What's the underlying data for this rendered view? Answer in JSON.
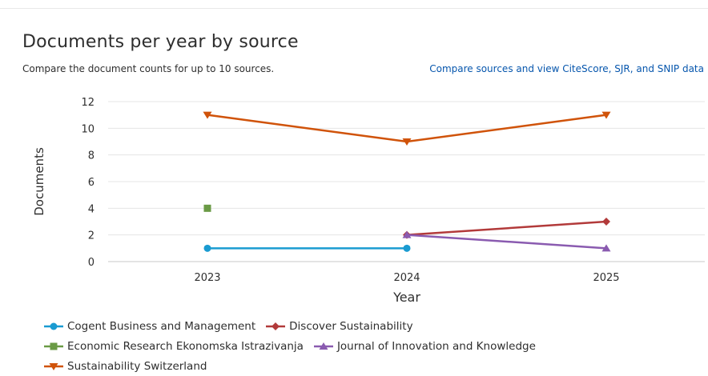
{
  "header": {
    "title": "Documents per year by source",
    "subtitle": "Compare the document counts for up to 10 sources.",
    "compare_link": "Compare sources and view CiteScore, SJR, and SNIP data"
  },
  "chart_data": {
    "type": "line",
    "title": "Documents per year by source",
    "xlabel": "Year",
    "ylabel": "Documents",
    "categories": [
      "2023",
      "2024",
      "2025"
    ],
    "ylim": [
      0,
      12
    ],
    "yticks": [
      0,
      2,
      4,
      6,
      8,
      10,
      12
    ],
    "grid": true,
    "legend_position": "bottom",
    "series": [
      {
        "name": "Cogent Business and Management",
        "color": "#1a9bd1",
        "marker": "circle",
        "values": [
          1,
          1,
          null
        ]
      },
      {
        "name": "Discover Sustainability",
        "color": "#b23a3a",
        "marker": "diamond",
        "values": [
          null,
          2,
          3
        ]
      },
      {
        "name": "Economic Research Ekonomska Istrazivanja",
        "color": "#6a9a45",
        "marker": "square",
        "values": [
          4,
          null,
          null
        ]
      },
      {
        "name": "Journal of Innovation and Knowledge",
        "color": "#8a5bb0",
        "marker": "triangle-up",
        "values": [
          null,
          2,
          1
        ]
      },
      {
        "name": "Sustainability Switzerland",
        "color": "#d0530a",
        "marker": "triangle-down",
        "values": [
          11,
          9,
          11
        ]
      }
    ]
  }
}
